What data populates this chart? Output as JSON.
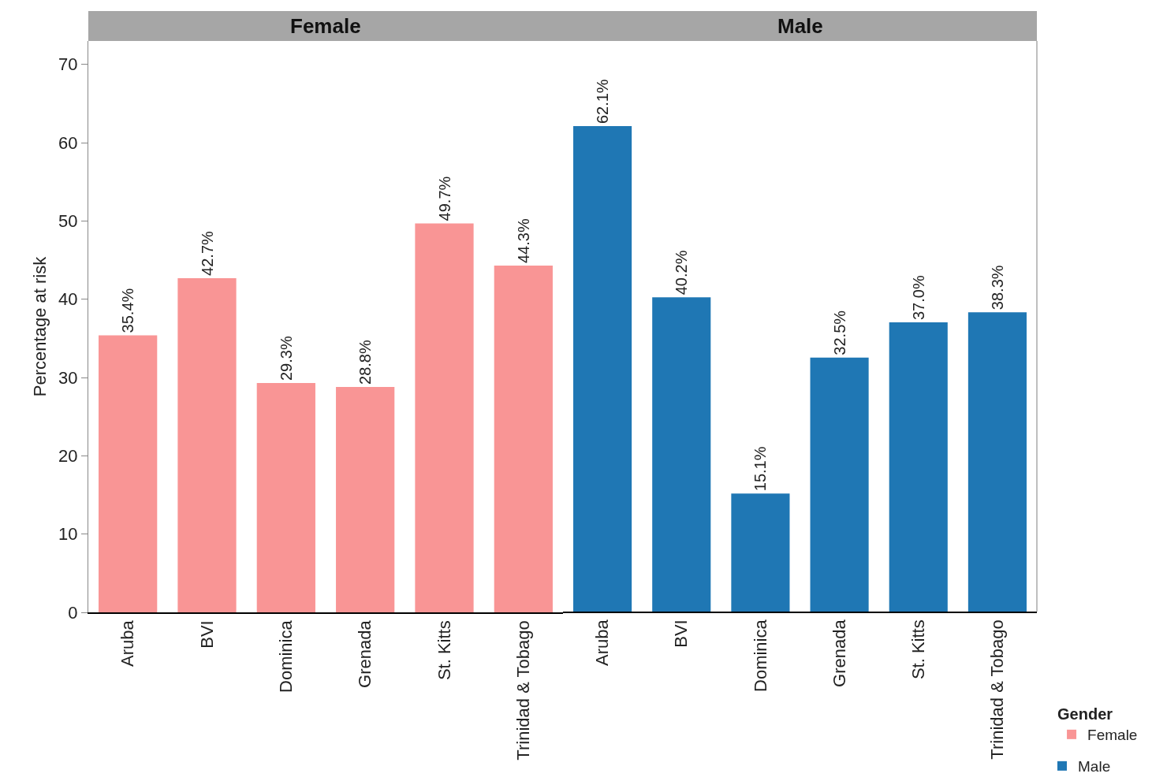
{
  "chart_data": [
    {
      "type": "bar",
      "title": "Female",
      "ylabel": "Percentage at risk",
      "categories": [
        "Aruba",
        "BVI",
        "Dominica",
        "Grenada",
        "St. Kitts",
        "Trinidad & Tobago"
      ],
      "series": [
        {
          "name": "Female",
          "color": "#f99595",
          "values": [
            35.4,
            42.7,
            29.3,
            28.8,
            49.7,
            44.3
          ],
          "value_labels": [
            "35.4%",
            "42.7%",
            "29.3%",
            "28.8%",
            "49.7%",
            "44.3%"
          ]
        }
      ],
      "ylim": [
        0,
        73
      ],
      "yticks": [
        0,
        10,
        20,
        30,
        40,
        50,
        60,
        70
      ],
      "grid": false,
      "legend": "bottom right",
      "legend_title": "Gender"
    },
    {
      "type": "bar",
      "title": "Male",
      "categories": [
        "Aruba",
        "BVI",
        "Dominica",
        "Grenada",
        "St. Kitts",
        "Trinidad & Tobago"
      ],
      "series": [
        {
          "name": "Male",
          "color": "#1f77b4",
          "values": [
            62.1,
            40.2,
            15.1,
            32.5,
            37.0,
            38.3
          ],
          "value_labels": [
            "62.1%",
            "40.2%",
            "15.1%",
            "32.5%",
            "37.0%",
            "38.3%"
          ]
        }
      ],
      "ylim": [
        0,
        73
      ],
      "yticks": [
        0,
        10,
        20,
        30,
        40,
        50,
        60,
        70
      ],
      "grid": false,
      "legend": "bottom right",
      "tick_labels": "x"
    }
  ]
}
